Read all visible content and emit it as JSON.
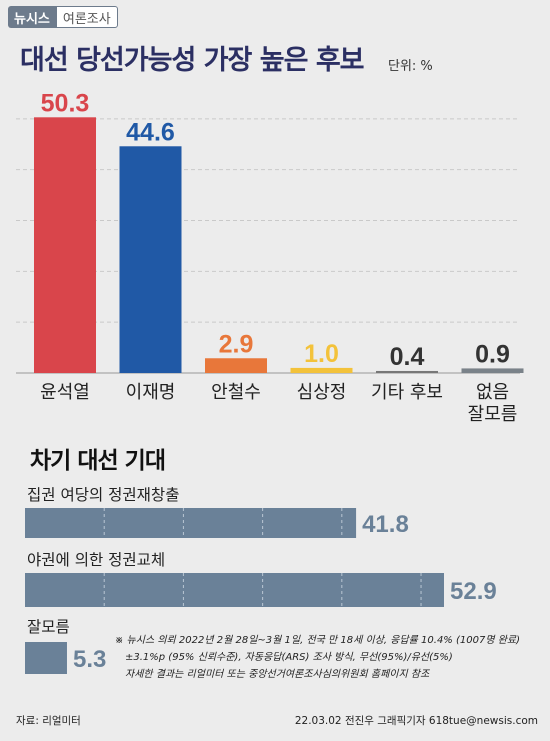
{
  "brand": {
    "name": "뉴시스",
    "tag": "여론조사"
  },
  "title": "대선 당선가능성 가장 높은 후보",
  "unit": "단위: %",
  "chart_data": [
    {
      "type": "bar",
      "categories": [
        [
          "윤석열"
        ],
        [
          "이재명"
        ],
        [
          "안철수"
        ],
        [
          "심상정"
        ],
        [
          "기타 후보"
        ],
        [
          "없음",
          "잘모름"
        ]
      ],
      "values": [
        50.3,
        44.6,
        2.9,
        1.0,
        0.4,
        0.9
      ],
      "value_labels": [
        "50.3",
        "44.6",
        "2.9",
        "1.0",
        "0.4",
        "0.9"
      ],
      "colors": [
        "#d9454b",
        "#2059a6",
        "#e8773a",
        "#f3c23a",
        "#777777",
        "#7a8289"
      ],
      "label_colors": [
        "#d9454b",
        "#2059a6",
        "#e8773a",
        "#f3c23a",
        "#333333",
        "#333333"
      ],
      "ylim": [
        0,
        60
      ],
      "grid": true
    },
    {
      "title": "차기 대선 기대",
      "type": "bar",
      "orientation": "horizontal",
      "categories": [
        "집권 여당의 정권재창출",
        "야권에 의한 정권교체",
        "잘모름"
      ],
      "values": [
        41.8,
        52.9,
        5.3
      ],
      "value_labels": [
        "41.8",
        "52.9",
        "5.3"
      ],
      "color": "#6a8198",
      "label_color": "#6a8198",
      "xlim": [
        0,
        60
      ],
      "grid": true
    }
  ],
  "footnote": [
    "※ 뉴시스 의뢰 2022년 2월 28일~3월 1일, 전국 만 18세 이상, 응답률 10.4% (1007명 완료)",
    "±3.1%p (95% 신뢰수준), 자동응답(ARS) 조사 방식, 무선(95%)/유선(5%)",
    "자세한 결과는 리얼미터 또는 중앙선거여론조사심의위원회 홈페이지 참조"
  ],
  "source": "자료: 리얼미터",
  "credit": "22.03.02 전진우 그래픽기자 618tue@newsis.com"
}
